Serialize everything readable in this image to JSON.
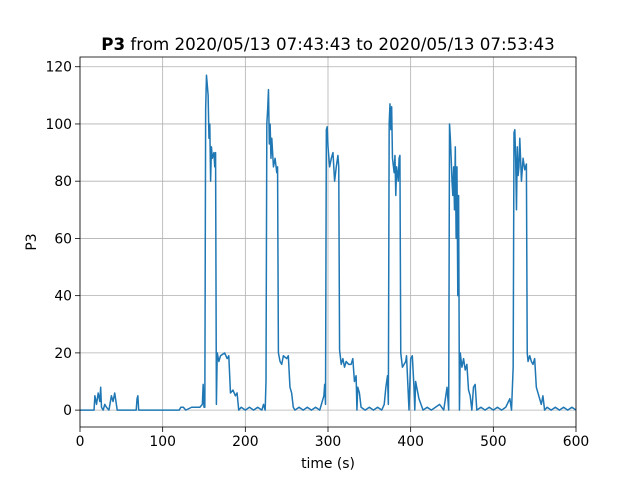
{
  "chart_data": {
    "type": "line",
    "title_bold": "P3",
    "title": "from 2020/05/13 07:43:43 to 2020/05/13 07:53:43",
    "x_label": "time (s)",
    "y_label": "P3",
    "color": "#1f77b4",
    "grid": true,
    "xlim": [
      0,
      600
    ],
    "ylim": [
      -5.9,
      123.4
    ],
    "xticks": [
      0,
      100,
      200,
      300,
      400,
      500,
      600
    ],
    "yticks": [
      0,
      20,
      40,
      60,
      80,
      100,
      120
    ],
    "x": [
      0,
      17,
      18,
      20,
      22,
      24,
      25,
      26,
      28,
      30,
      32,
      35,
      38,
      40,
      42,
      44,
      45,
      68,
      69,
      70,
      71,
      120,
      122,
      125,
      128,
      135,
      140,
      145,
      148,
      149,
      150,
      151,
      152,
      153,
      155,
      156,
      157,
      158,
      159,
      160,
      162,
      163,
      164,
      165,
      166,
      168,
      170,
      175,
      178,
      180,
      182,
      185,
      188,
      190,
      192,
      195,
      200,
      205,
      210,
      215,
      220,
      222,
      224,
      225,
      226,
      227,
      228,
      229,
      230,
      231,
      232,
      234,
      236,
      238,
      239,
      240,
      242,
      244,
      246,
      250,
      252,
      254,
      256,
      258,
      260,
      265,
      270,
      275,
      280,
      285,
      290,
      295,
      296,
      297,
      298,
      299,
      300,
      302,
      304,
      306,
      308,
      310,
      312,
      313,
      314,
      316,
      318,
      320,
      322,
      325,
      328,
      330,
      332,
      334,
      335,
      336,
      338,
      340,
      345,
      350,
      355,
      360,
      365,
      368,
      370,
      372,
      373,
      374,
      375,
      376,
      377,
      378,
      380,
      381,
      382,
      383,
      385,
      386,
      387,
      388,
      390,
      392,
      394,
      395,
      398,
      400,
      402,
      404,
      405,
      406,
      410,
      415,
      420,
      425,
      430,
      435,
      440,
      444,
      446,
      447,
      448,
      449,
      450,
      451,
      452,
      453,
      454,
      455,
      456,
      457,
      458,
      459,
      460,
      462,
      464,
      466,
      468,
      470,
      472,
      474,
      476,
      478,
      480,
      485,
      490,
      495,
      500,
      505,
      510,
      515,
      520,
      522,
      524,
      525,
      526,
      527,
      528,
      529,
      530,
      531,
      532,
      534,
      536,
      538,
      540,
      541,
      542,
      544,
      546,
      548,
      550,
      552,
      555,
      558,
      560,
      562,
      565,
      570,
      575,
      580,
      585,
      590,
      595,
      600
    ],
    "values": [
      0,
      0,
      5,
      2,
      6,
      3,
      8,
      1,
      0,
      2,
      1,
      0,
      5,
      3,
      6,
      2,
      0,
      0,
      4,
      5,
      0,
      0,
      1,
      1,
      0,
      1,
      1,
      1,
      2,
      9,
      1,
      1,
      105,
      117,
      110,
      95,
      100,
      80,
      92,
      88,
      90,
      85,
      90,
      2,
      20,
      17,
      19,
      20,
      18,
      19,
      6,
      7,
      5,
      6,
      0,
      1,
      0,
      1,
      0,
      1,
      0,
      2,
      0,
      10,
      100,
      105,
      112,
      93,
      100,
      88,
      95,
      85,
      88,
      83,
      85,
      20,
      17,
      16,
      19,
      18,
      19,
      8,
      6,
      1,
      0,
      1,
      0,
      1,
      0,
      1,
      0,
      5,
      9,
      2,
      98,
      99,
      92,
      85,
      88,
      90,
      80,
      85,
      89,
      85,
      21,
      16,
      18,
      15,
      17,
      16,
      16,
      18,
      10,
      12,
      0,
      8,
      6,
      1,
      0,
      1,
      0,
      1,
      0,
      2,
      8,
      12,
      2,
      100,
      107,
      98,
      106,
      88,
      83,
      89,
      75,
      85,
      80,
      88,
      89,
      20,
      15,
      16,
      17,
      19,
      0,
      18,
      19,
      8,
      0,
      10,
      4,
      0,
      1,
      0,
      1,
      2,
      0,
      8,
      0,
      100,
      95,
      88,
      80,
      75,
      85,
      70,
      92,
      60,
      85,
      40,
      75,
      0,
      20,
      15,
      18,
      14,
      16,
      7,
      5,
      0,
      8,
      9,
      0,
      1,
      0,
      1,
      0,
      1,
      0,
      1,
      4,
      0,
      15,
      97,
      98,
      88,
      70,
      92,
      82,
      85,
      95,
      80,
      88,
      84,
      86,
      20,
      17,
      19,
      17,
      16,
      18,
      8,
      5,
      2,
      5,
      0,
      1,
      0,
      1,
      0,
      1,
      0,
      1,
      0
    ]
  }
}
